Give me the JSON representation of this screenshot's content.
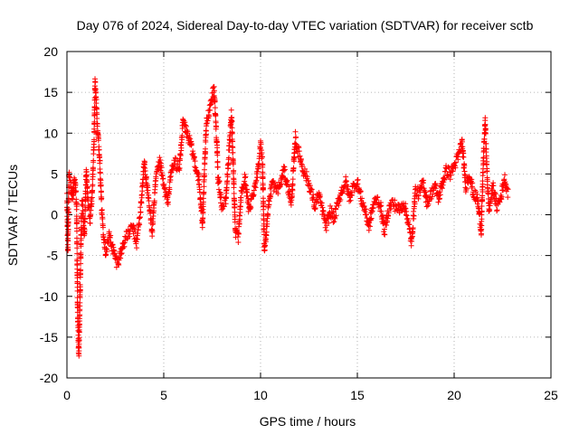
{
  "chart_data": {
    "type": "scatter",
    "title": "Day 076 of 2024, Sidereal Day-to-day VTEC variation (SDTVAR) for receiver sctb",
    "xlabel": "GPS time / hours",
    "ylabel": "SDTVAR / TECUs",
    "xlim": [
      0,
      25
    ],
    "ylim": [
      -20,
      20
    ],
    "xticks": [
      0,
      5,
      10,
      15,
      20,
      25
    ],
    "yticks": [
      -20,
      -15,
      -10,
      -5,
      0,
      5,
      10,
      15,
      20
    ],
    "xtick_labels": [
      "0",
      "5",
      "10",
      "15",
      "20",
      "25"
    ],
    "ytick_labels": [
      "-20",
      "-15",
      "-10",
      "-5",
      "0",
      "5",
      "10",
      "15",
      "20"
    ],
    "grid": true,
    "marker": "plus",
    "series": [
      {
        "name": "SDTVAR",
        "color": "#ff0000",
        "note": "Representative trace estimated from the dense '+' markers; a generator densifies these anchor values into markers.",
        "anchors": [
          [
            0.0,
            2.0
          ],
          [
            0.05,
            -4.5
          ],
          [
            0.1,
            4.8
          ],
          [
            0.2,
            3.5
          ],
          [
            0.3,
            2.0
          ],
          [
            0.4,
            4.5
          ],
          [
            0.5,
            1.0
          ],
          [
            0.55,
            -11.5
          ],
          [
            0.6,
            -16.5
          ],
          [
            0.62,
            -17.0
          ],
          [
            0.65,
            -13.0
          ],
          [
            0.7,
            -7.0
          ],
          [
            0.75,
            0.5
          ],
          [
            0.8,
            1.5
          ],
          [
            0.9,
            -2.5
          ],
          [
            1.0,
            5.5
          ],
          [
            1.1,
            1.0
          ],
          [
            1.2,
            -0.5
          ],
          [
            1.3,
            2.5
          ],
          [
            1.4,
            9.0
          ],
          [
            1.45,
            16.2
          ],
          [
            1.5,
            14.5
          ],
          [
            1.6,
            10.0
          ],
          [
            1.7,
            6.5
          ],
          [
            1.8,
            0.5
          ],
          [
            1.9,
            -2.5
          ],
          [
            2.0,
            -4.5
          ],
          [
            2.2,
            -2.5
          ],
          [
            2.4,
            -4.5
          ],
          [
            2.6,
            -6.0
          ],
          [
            2.8,
            -4.5
          ],
          [
            3.0,
            -3.0
          ],
          [
            3.4,
            -1.5
          ],
          [
            3.6,
            -3.5
          ],
          [
            3.8,
            0.5
          ],
          [
            4.0,
            6.5
          ],
          [
            4.2,
            2.0
          ],
          [
            4.4,
            -2.0
          ],
          [
            4.6,
            4.5
          ],
          [
            4.8,
            6.5
          ],
          [
            5.0,
            3.5
          ],
          [
            5.2,
            1.5
          ],
          [
            5.4,
            5.5
          ],
          [
            5.6,
            6.5
          ],
          [
            5.8,
            5.5
          ],
          [
            6.0,
            11.5
          ],
          [
            6.2,
            10.0
          ],
          [
            6.4,
            8.5
          ],
          [
            6.6,
            6.5
          ],
          [
            6.8,
            4.5
          ],
          [
            7.0,
            -1.0
          ],
          [
            7.05,
            2.0
          ],
          [
            7.2,
            11.0
          ],
          [
            7.4,
            13.5
          ],
          [
            7.6,
            15.5
          ],
          [
            7.75,
            8.5
          ],
          [
            7.8,
            4.5
          ],
          [
            7.9,
            3.0
          ],
          [
            8.0,
            1.0
          ],
          [
            8.2,
            1.5
          ],
          [
            8.5,
            12.5
          ],
          [
            8.7,
            -2.0
          ],
          [
            8.85,
            -3.0
          ],
          [
            9.0,
            2.5
          ],
          [
            9.2,
            4.5
          ],
          [
            9.4,
            0.5
          ],
          [
            9.6,
            2.5
          ],
          [
            9.8,
            4.5
          ],
          [
            10.0,
            8.5
          ],
          [
            10.1,
            6.5
          ],
          [
            10.2,
            -4.5
          ],
          [
            10.3,
            -2.0
          ],
          [
            10.4,
            1.0
          ],
          [
            10.6,
            4.0
          ],
          [
            10.8,
            3.0
          ],
          [
            11.0,
            3.5
          ],
          [
            11.2,
            5.5
          ],
          [
            11.4,
            3.5
          ],
          [
            11.6,
            1.5
          ],
          [
            11.8,
            9.5
          ],
          [
            11.9,
            8.0
          ],
          [
            12.0,
            7.5
          ],
          [
            12.2,
            5.5
          ],
          [
            12.4,
            4.5
          ],
          [
            12.6,
            3.0
          ],
          [
            12.8,
            1.0
          ],
          [
            13.0,
            2.5
          ],
          [
            13.2,
            0.5
          ],
          [
            13.4,
            -1.5
          ],
          [
            13.6,
            0.5
          ],
          [
            13.8,
            -0.5
          ],
          [
            14.0,
            1.5
          ],
          [
            14.2,
            3.0
          ],
          [
            14.4,
            4.0
          ],
          [
            14.6,
            2.0
          ],
          [
            14.8,
            3.5
          ],
          [
            15.0,
            4.0
          ],
          [
            15.2,
            2.0
          ],
          [
            15.4,
            0.5
          ],
          [
            15.6,
            -1.5
          ],
          [
            15.8,
            1.0
          ],
          [
            16.0,
            2.0
          ],
          [
            16.2,
            1.0
          ],
          [
            16.4,
            -2.0
          ],
          [
            16.6,
            0.5
          ],
          [
            16.8,
            1.5
          ],
          [
            17.0,
            1.0
          ],
          [
            17.2,
            0.5
          ],
          [
            17.4,
            1.5
          ],
          [
            17.6,
            -0.5
          ],
          [
            17.8,
            -3.5
          ],
          [
            18.0,
            3.0
          ],
          [
            18.2,
            2.5
          ],
          [
            18.4,
            4.0
          ],
          [
            18.6,
            1.5
          ],
          [
            18.8,
            2.5
          ],
          [
            19.0,
            3.5
          ],
          [
            19.2,
            2.0
          ],
          [
            19.4,
            4.0
          ],
          [
            19.6,
            5.5
          ],
          [
            19.8,
            5.0
          ],
          [
            20.0,
            6.0
          ],
          [
            20.2,
            7.0
          ],
          [
            20.4,
            9.0
          ],
          [
            20.6,
            3.5
          ],
          [
            20.8,
            5.0
          ],
          [
            21.0,
            2.5
          ],
          [
            21.2,
            2.0
          ],
          [
            21.4,
            -2.0
          ],
          [
            21.5,
            6.0
          ],
          [
            21.6,
            11.5
          ],
          [
            21.7,
            5.0
          ],
          [
            21.8,
            0.5
          ],
          [
            22.0,
            3.5
          ],
          [
            22.2,
            1.0
          ],
          [
            22.4,
            2.0
          ],
          [
            22.6,
            4.5
          ],
          [
            22.8,
            2.5
          ]
        ]
      }
    ]
  }
}
